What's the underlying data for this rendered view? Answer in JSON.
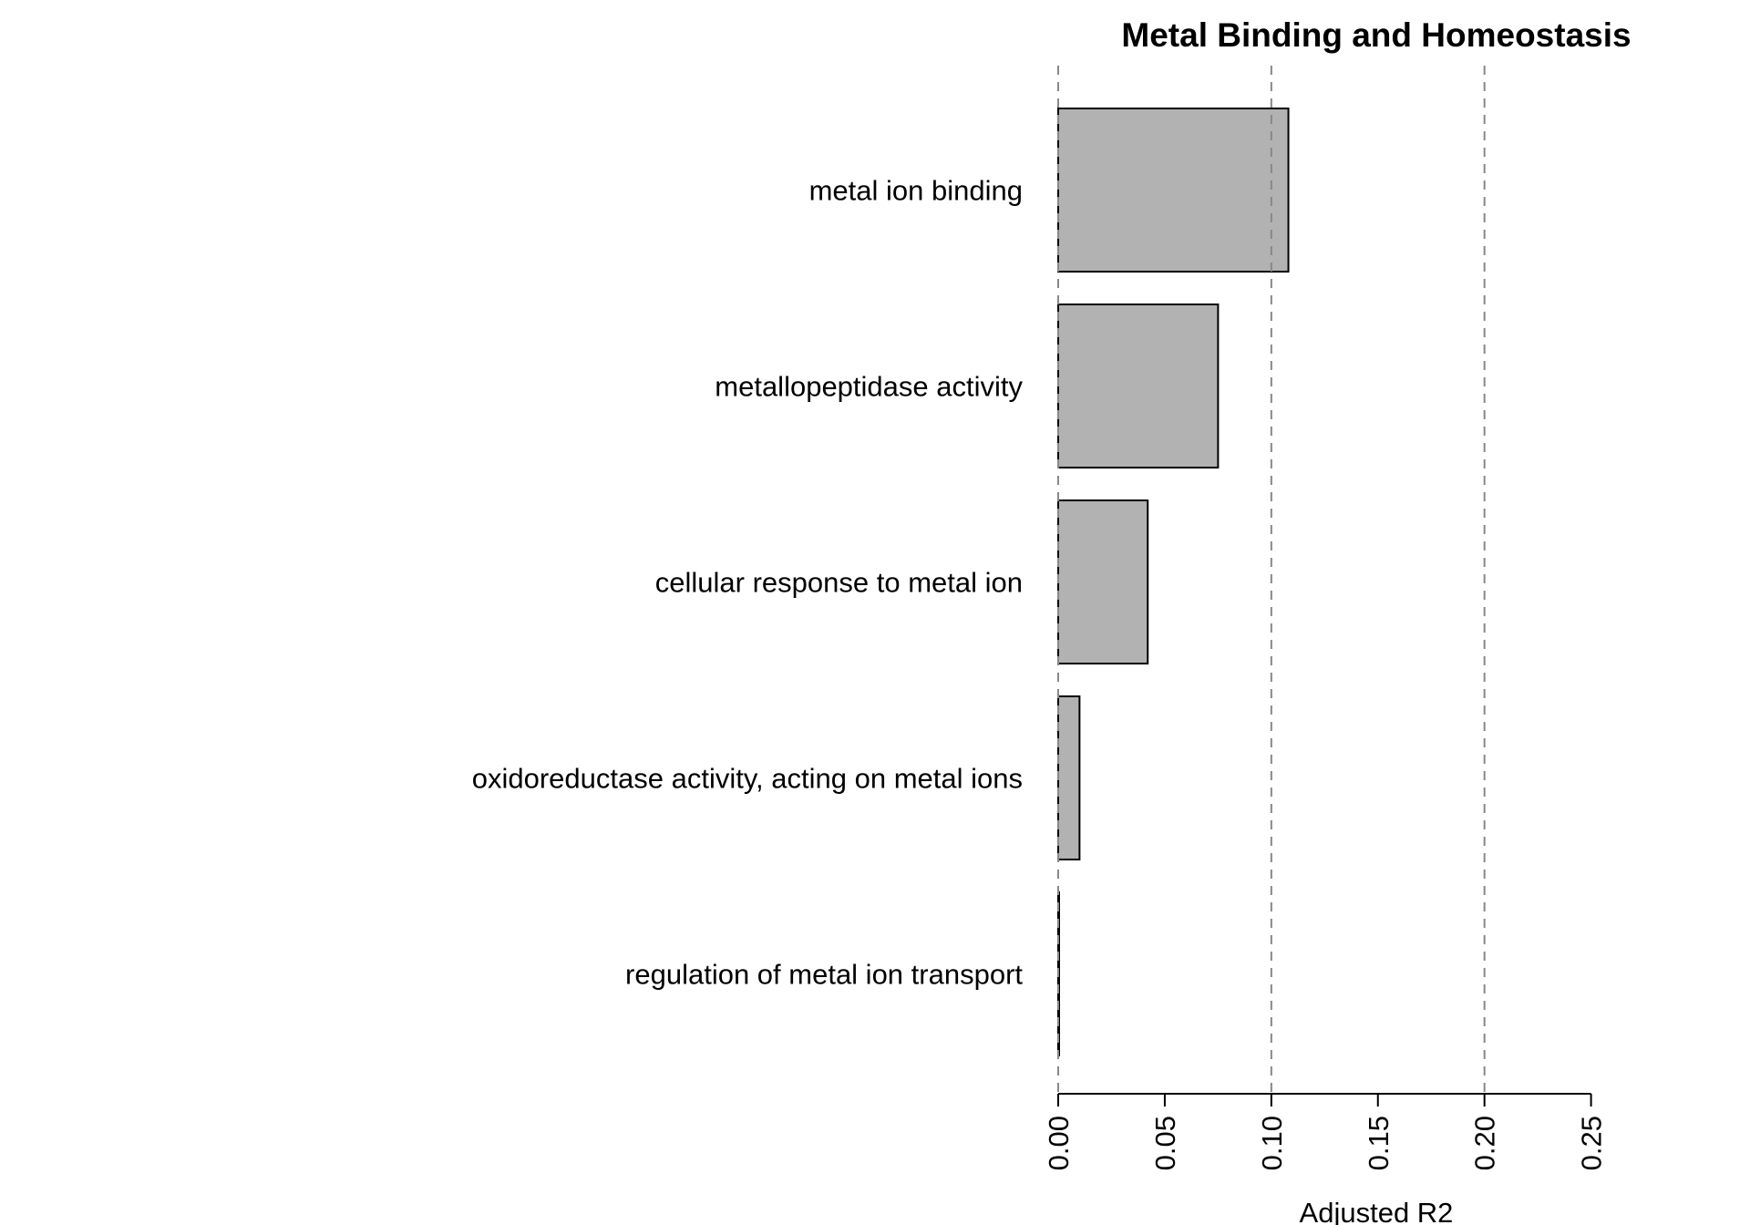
{
  "chart_data": {
    "type": "bar",
    "orientation": "horizontal",
    "title": "Metal Binding and Homeostasis",
    "xlabel": "Adjusted R2",
    "ylabel": "",
    "categories": [
      "metal ion binding",
      "metallopeptidase activity",
      "cellular response to metal ion",
      "oxidoreductase activity, acting on metal ions",
      "regulation of metal ion transport"
    ],
    "values": [
      0.108,
      0.075,
      0.042,
      0.01,
      0.0
    ],
    "xlim": [
      0,
      0.25
    ],
    "xticks": [
      "0.00",
      "0.05",
      "0.10",
      "0.15",
      "0.20",
      "0.25"
    ],
    "reference_lines": [
      0,
      0.1,
      0.2
    ],
    "bar_color": "#b2b2b2",
    "grid": false
  }
}
